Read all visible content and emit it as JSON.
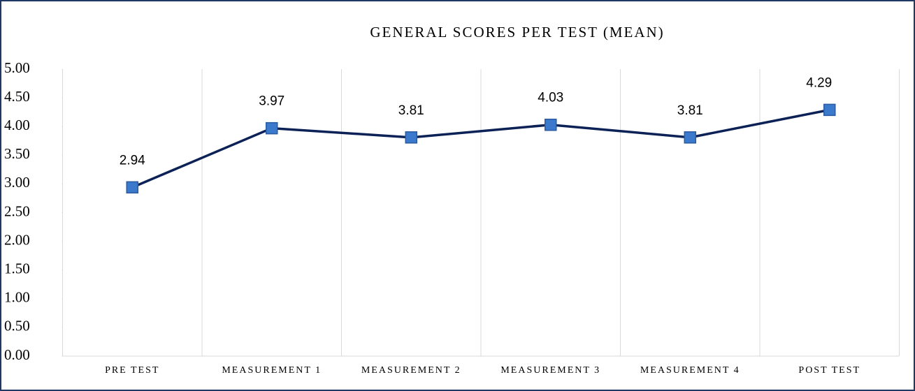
{
  "chart_data": {
    "type": "line",
    "title": "GENERAL SCORES PER TEST (MEAN)",
    "categories": [
      "PRE TEST",
      "MEASUREMENT 1",
      "MEASUREMENT 2",
      "MEASUREMENT 3",
      "MEASUREMENT 4",
      "POST TEST"
    ],
    "values": [
      2.94,
      3.97,
      3.81,
      4.03,
      3.81,
      4.29
    ],
    "color": "#0c2257",
    "marker_color": "#3b79cc",
    "ylim": [
      0,
      5
    ],
    "yticks": [
      {
        "value": 0,
        "label": "0.00"
      },
      {
        "value": 0.5,
        "label": "0.50"
      },
      {
        "value": 1,
        "label": "1.00"
      },
      {
        "value": 1.5,
        "label": "1.50"
      },
      {
        "value": 2,
        "label": "2.00"
      },
      {
        "value": 2.5,
        "label": "2.50"
      },
      {
        "value": 3,
        "label": "3.00"
      },
      {
        "value": 3.5,
        "label": "3.50"
      },
      {
        "value": 4,
        "label": "4.00"
      },
      {
        "value": 4.5,
        "label": "4.50"
      },
      {
        "value": 5,
        "label": "5.00"
      }
    ],
    "grid": true
  }
}
